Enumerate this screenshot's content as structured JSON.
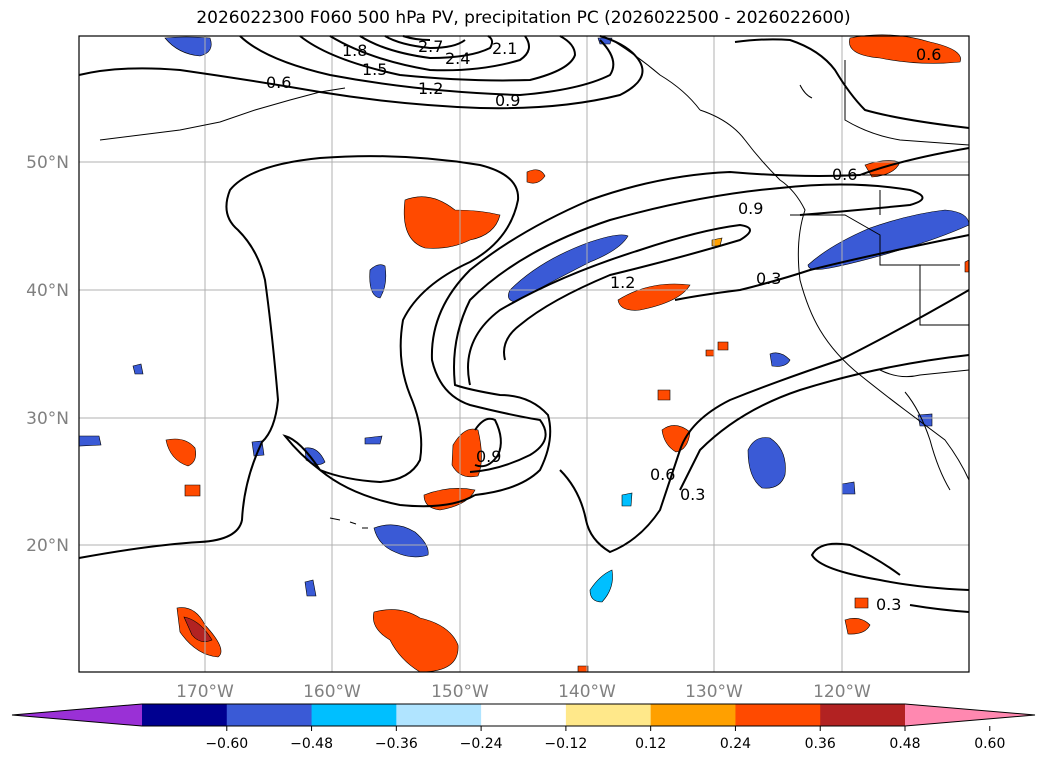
{
  "title": "2026022300 F060 500 hPa PV, precipitation PC (2026022500 - 2026022600)",
  "lat_labels": [
    "50°N",
    "40°N",
    "30°N",
    "20°N"
  ],
  "lon_labels": [
    "170°W",
    "160°W",
    "150°W",
    "140°W",
    "130°W",
    "120°W"
  ],
  "contour_labels": [
    "2.7",
    "2.4",
    "2.1",
    "1.8",
    "1.5",
    "1.2",
    "0.9",
    "0.6",
    "0.6",
    "0.6",
    "0.9",
    "1.2",
    "0.3",
    "0.9",
    "0.6",
    "0.3",
    "0.3"
  ],
  "colorbar": {
    "colors": [
      "#9a30d6",
      "#000090",
      "#3a5ad6",
      "#00bfff",
      "#b0e4ff",
      "#ffffff",
      "#ffe88a",
      "#ffa000",
      "#ff4a00",
      "#b22222",
      "#ff88b0"
    ],
    "tick_labels": [
      "−0.60",
      "−0.48",
      "−0.36",
      "−0.24",
      "−0.12",
      "0.12",
      "0.24",
      "0.36",
      "0.48",
      "0.60"
    ]
  }
}
